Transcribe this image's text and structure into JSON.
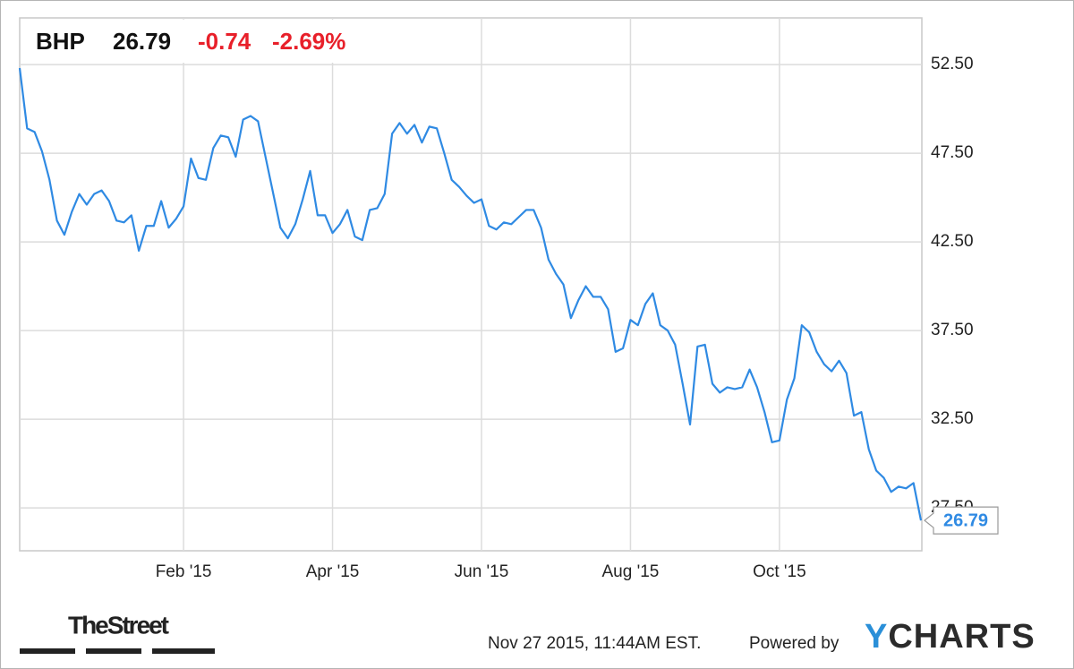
{
  "header": {
    "symbol": "BHP",
    "change": "-0.74",
    "change_percent": "-2.69%"
  },
  "footer": {
    "source_logo": "TheStreet",
    "timestamp": "Nov 27 2015, 11:44AM EST.",
    "powered_by": "Powered by",
    "brand": "YCHARTS"
  },
  "chart_data": {
    "type": "line",
    "grid": true,
    "ylim": [
      25.08,
      55.13
    ],
    "yticks": [
      {
        "value": 27.5,
        "label": "27.50"
      },
      {
        "value": 32.5,
        "label": "32.50"
      },
      {
        "value": 37.5,
        "label": "37.50"
      },
      {
        "value": 42.5,
        "label": "42.50"
      },
      {
        "value": 47.5,
        "label": "47.50"
      },
      {
        "value": 52.5,
        "label": "52.50"
      }
    ],
    "categories": [
      null,
      null,
      null,
      null,
      null,
      null,
      null,
      null,
      null,
      null,
      null,
      null,
      null,
      null,
      null,
      null,
      null,
      null,
      null,
      null,
      null,
      null,
      "Feb '15",
      null,
      null,
      null,
      null,
      null,
      null,
      null,
      null,
      null,
      null,
      null,
      null,
      null,
      null,
      null,
      null,
      null,
      null,
      null,
      "Apr '15",
      null,
      null,
      null,
      null,
      null,
      null,
      null,
      null,
      null,
      null,
      null,
      null,
      null,
      null,
      null,
      null,
      null,
      null,
      null,
      "Jun '15",
      null,
      null,
      null,
      null,
      null,
      null,
      null,
      null,
      null,
      null,
      null,
      null,
      null,
      null,
      null,
      null,
      null,
      null,
      null,
      "Aug '15",
      null,
      null,
      null,
      null,
      null,
      null,
      null,
      null,
      null,
      null,
      null,
      null,
      null,
      null,
      null,
      null,
      null,
      null,
      null,
      "Oct '15",
      null,
      null,
      null,
      null,
      null,
      null,
      null,
      null,
      null,
      null,
      null,
      null,
      null,
      null,
      null,
      null,
      null,
      null,
      null
    ],
    "series": [
      {
        "color": "#2f8ae3",
        "values": [
          52.3,
          48.9,
          48.7,
          47.6,
          46.0,
          43.7,
          42.9,
          44.2,
          45.2,
          44.6,
          45.2,
          45.4,
          44.8,
          43.7,
          43.6,
          44.0,
          42.0,
          43.4,
          43.4,
          44.8,
          43.3,
          43.8,
          44.5,
          47.2,
          46.1,
          46.0,
          47.8,
          48.5,
          48.4,
          47.3,
          49.4,
          49.6,
          49.3,
          47.3,
          45.3,
          43.3,
          42.7,
          43.5,
          44.9,
          46.5,
          44.0,
          44.0,
          43.0,
          43.5,
          44.3,
          42.8,
          42.6,
          44.3,
          44.4,
          45.2,
          48.6,
          49.2,
          48.6,
          49.1,
          48.1,
          49.0,
          48.9,
          47.5,
          46.0,
          45.6,
          45.1,
          44.7,
          44.9,
          43.4,
          43.2,
          43.6,
          43.5,
          43.9,
          44.3,
          44.3,
          43.3,
          41.5,
          40.7,
          40.1,
          38.2,
          39.2,
          40.0,
          39.4,
          39.4,
          38.7,
          36.3,
          36.5,
          38.1,
          37.8,
          39.0,
          39.6,
          37.8,
          37.5,
          36.7,
          34.5,
          32.2,
          36.6,
          36.7,
          34.5,
          34.0,
          34.3,
          34.2,
          34.3,
          35.3,
          34.3,
          32.9,
          31.2,
          31.3,
          33.6,
          34.8,
          37.8,
          37.4,
          36.3,
          35.6,
          35.2,
          35.8,
          35.1,
          32.7,
          32.9,
          30.8,
          29.6,
          29.2,
          28.4,
          28.7,
          28.6,
          28.9,
          26.79
        ]
      }
    ]
  }
}
